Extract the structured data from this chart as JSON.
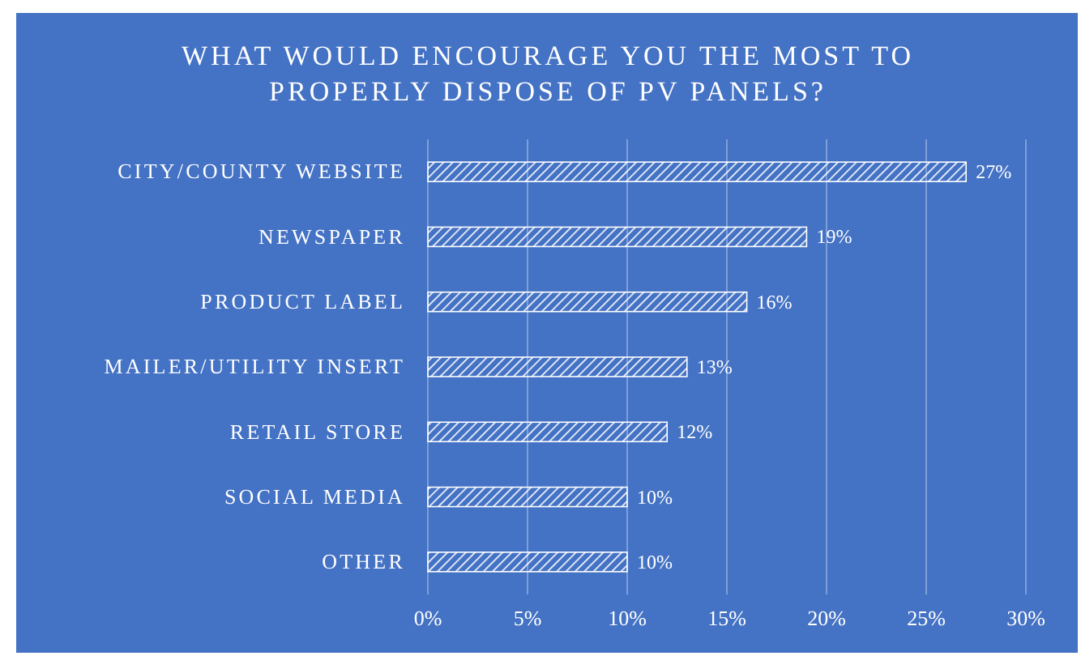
{
  "chart_data": {
    "type": "bar",
    "orientation": "horizontal",
    "title": "WHAT WOULD ENCOURAGE YOU THE MOST TO PROPERLY DISPOSE OF PV PANELS?",
    "categories": [
      "CITY/COUNTY WEBSITE",
      "NEWSPAPER",
      "PRODUCT LABEL",
      "MAILER/UTILITY INSERT",
      "RETAIL STORE",
      "SOCIAL MEDIA",
      "OTHER"
    ],
    "values": [
      27,
      19,
      16,
      13,
      12,
      10,
      10
    ],
    "value_labels": [
      "27%",
      "19%",
      "16%",
      "13%",
      "12%",
      "10%",
      "10%"
    ],
    "color": "#ffffff",
    "xlim": [
      0,
      30
    ],
    "xticks": [
      {
        "value": 0,
        "label": "0%"
      },
      {
        "value": 5,
        "label": "5%"
      },
      {
        "value": 10,
        "label": "10%"
      },
      {
        "value": 15,
        "label": "15%"
      },
      {
        "value": 20,
        "label": "20%"
      },
      {
        "value": 25,
        "label": "25%"
      },
      {
        "value": 30,
        "label": "30%"
      }
    ],
    "grid": "x"
  }
}
